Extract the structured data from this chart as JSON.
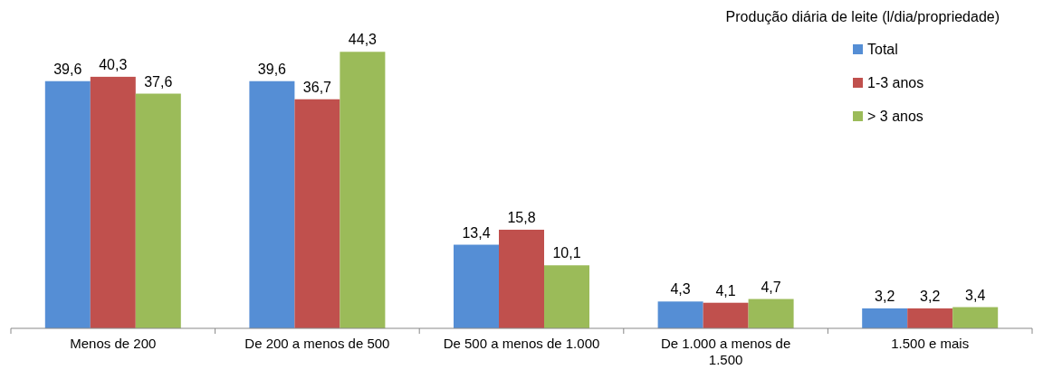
{
  "chart_data": {
    "type": "bar",
    "legend_title": "Produção diária de leite (l/dia/propriedade)",
    "categories": [
      "Menos de 200",
      "De 200 a menos de 500",
      "De 500 a menos de 1.000",
      "De 1.000 a menos de 1.500",
      "1.500 e mais"
    ],
    "series": [
      {
        "name": "Total",
        "color": "#558ed5",
        "values": [
          39.6,
          39.6,
          13.4,
          4.3,
          3.2
        ],
        "value_labels": [
          "39,6",
          "39,6",
          "13,4",
          "4,3",
          "3,2"
        ]
      },
      {
        "name": "1-3 anos",
        "color": "#c0504d",
        "values": [
          40.3,
          36.7,
          15.8,
          4.1,
          3.2
        ],
        "value_labels": [
          "40,3",
          "36,7",
          "15,8",
          "4,1",
          "3,2"
        ]
      },
      {
        "name": "> 3 anos",
        "color": "#9bbb59",
        "values": [
          37.6,
          44.3,
          10.1,
          4.7,
          3.4
        ],
        "value_labels": [
          "37,6",
          "44,3",
          "10,1",
          "4,7",
          "3,4"
        ]
      }
    ],
    "tick_labels": "x",
    "legend": "top right"
  }
}
